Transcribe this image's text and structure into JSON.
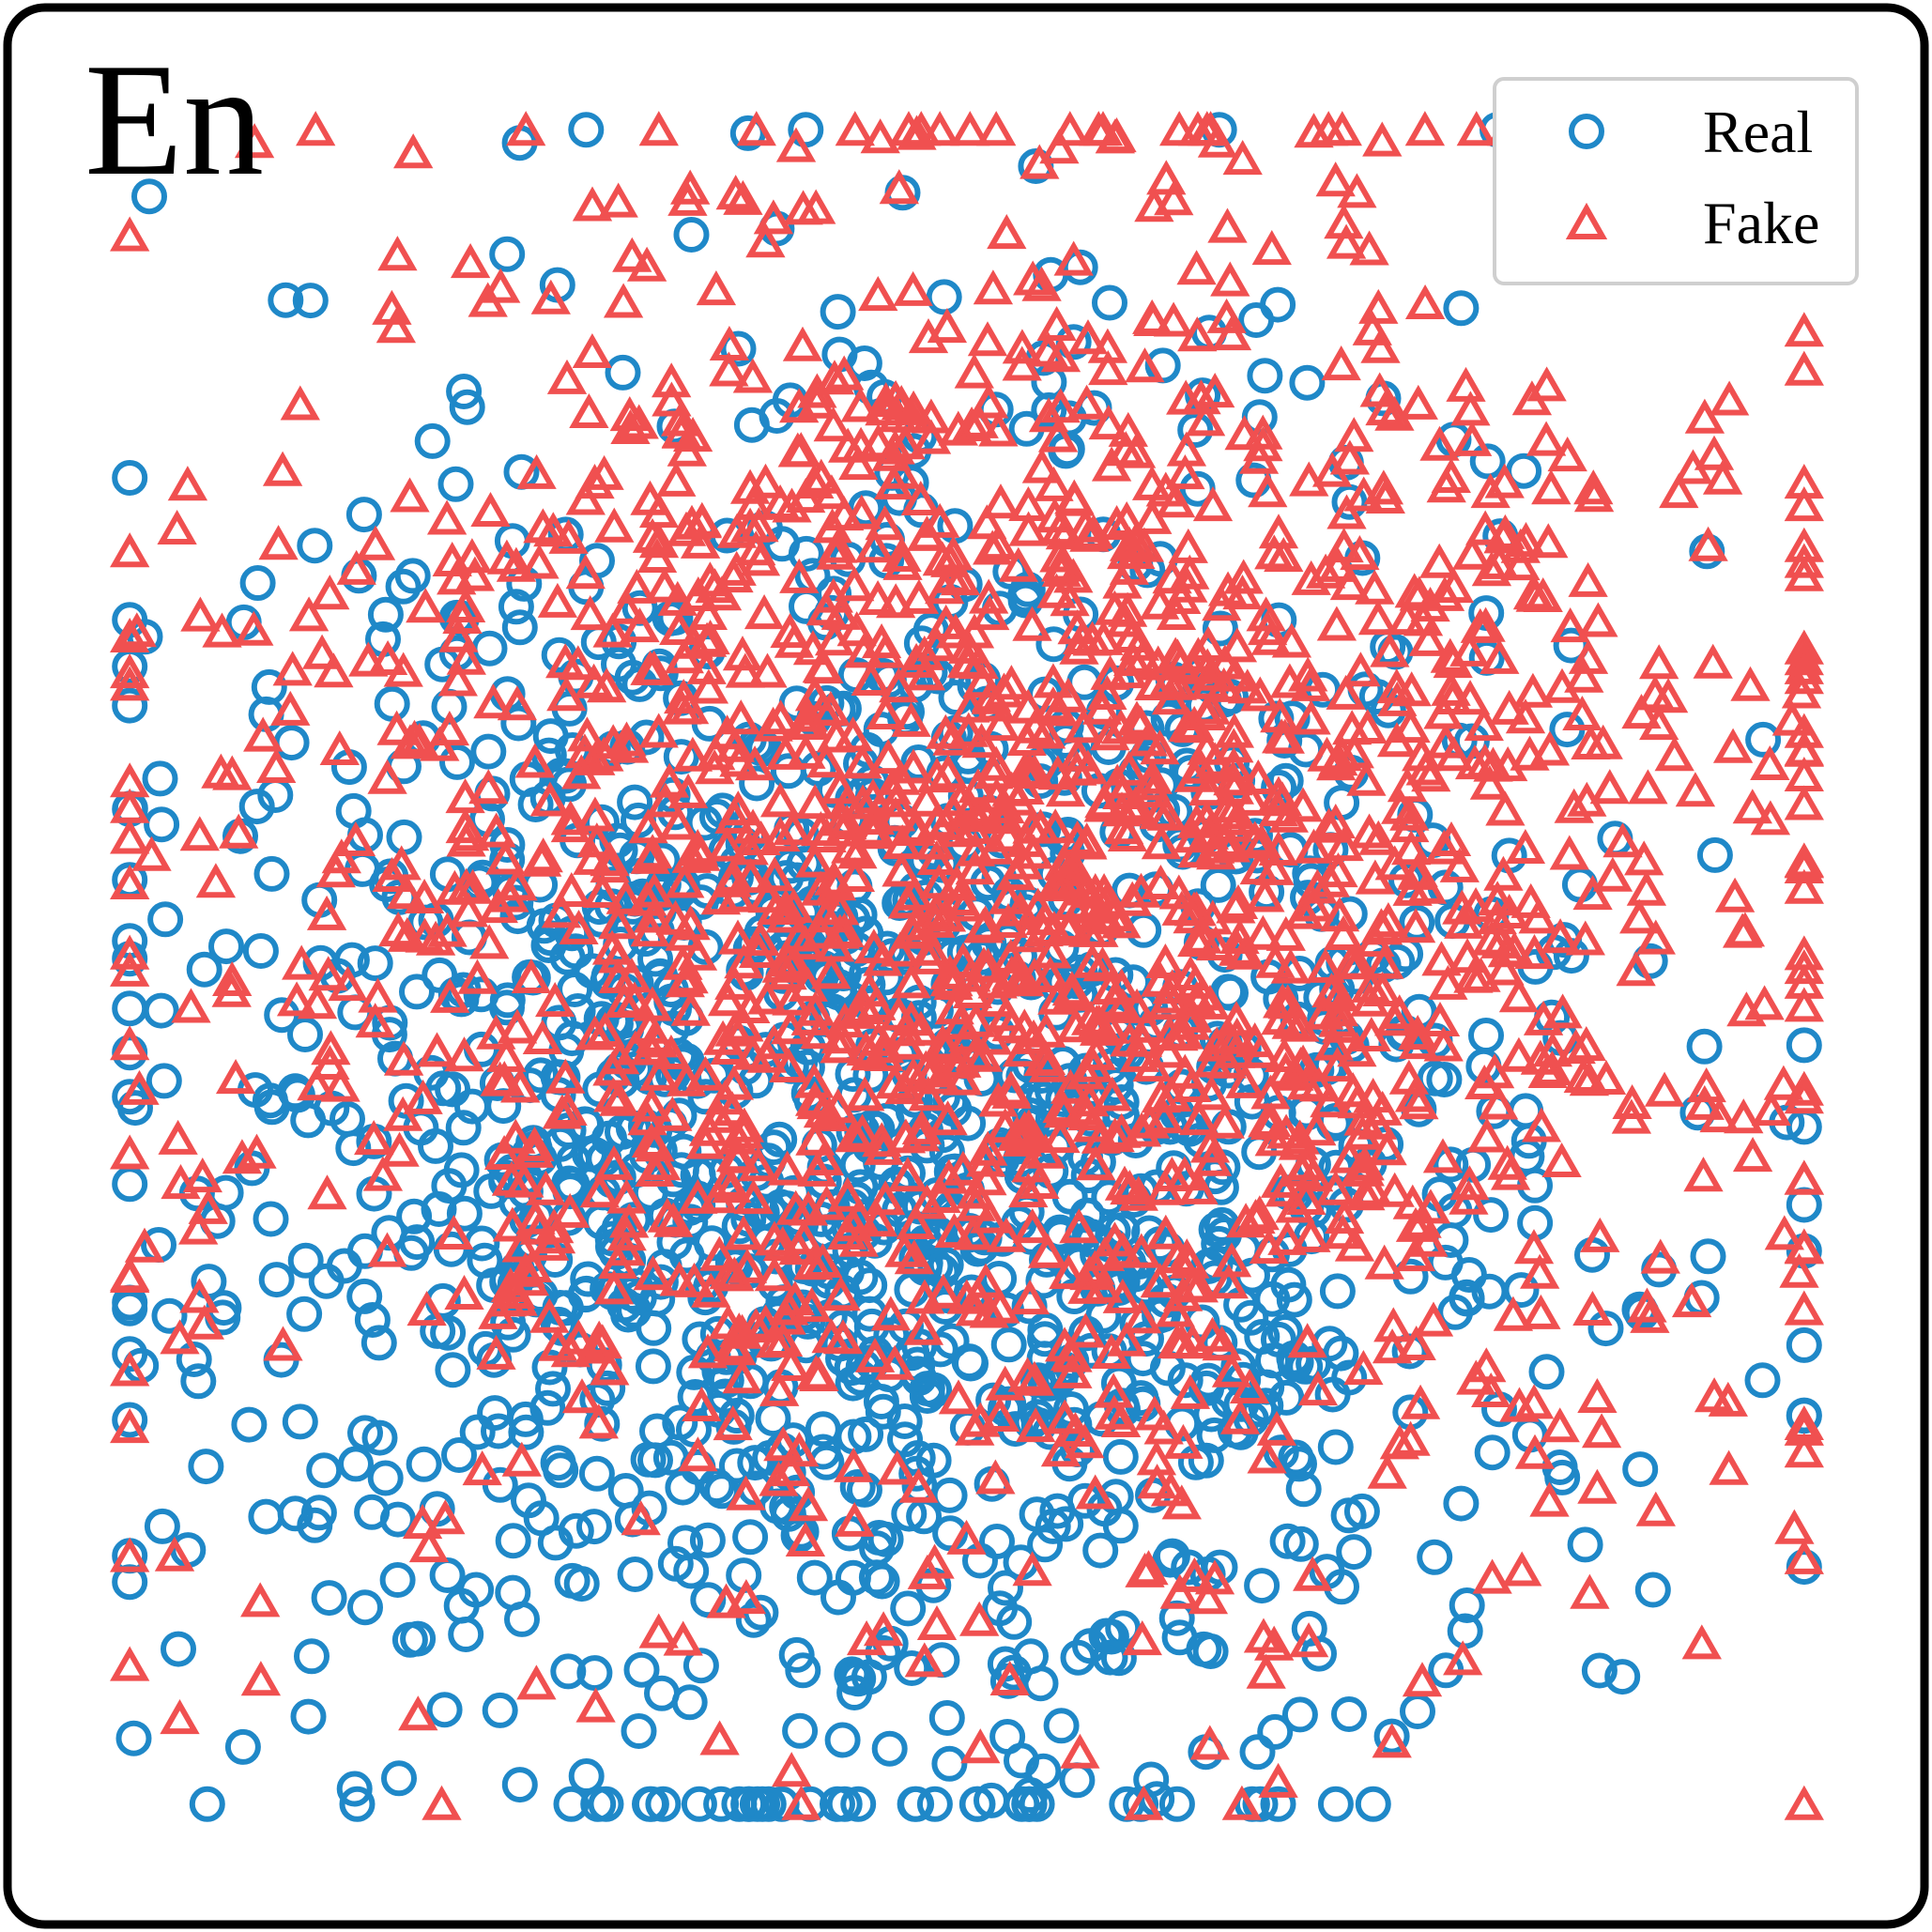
{
  "chart_data": {
    "type": "scatter",
    "title": "En",
    "xlabel": "",
    "ylabel": "",
    "axes_visible": false,
    "grid": false,
    "legend_position": "top-right",
    "xlim": [
      0,
      100
    ],
    "ylim": [
      0,
      100
    ],
    "series": [
      {
        "name": "Real",
        "marker": "circle",
        "color": "#1f88c8",
        "center": [
          45,
          42
        ],
        "spread": [
          20,
          20
        ],
        "count": 1500,
        "seed": 7
      },
      {
        "name": "Fake",
        "marker": "triangle",
        "color": "#f05050",
        "center": [
          52,
          54
        ],
        "spread": [
          22,
          20
        ],
        "count": 1800,
        "seed": 23
      }
    ]
  }
}
